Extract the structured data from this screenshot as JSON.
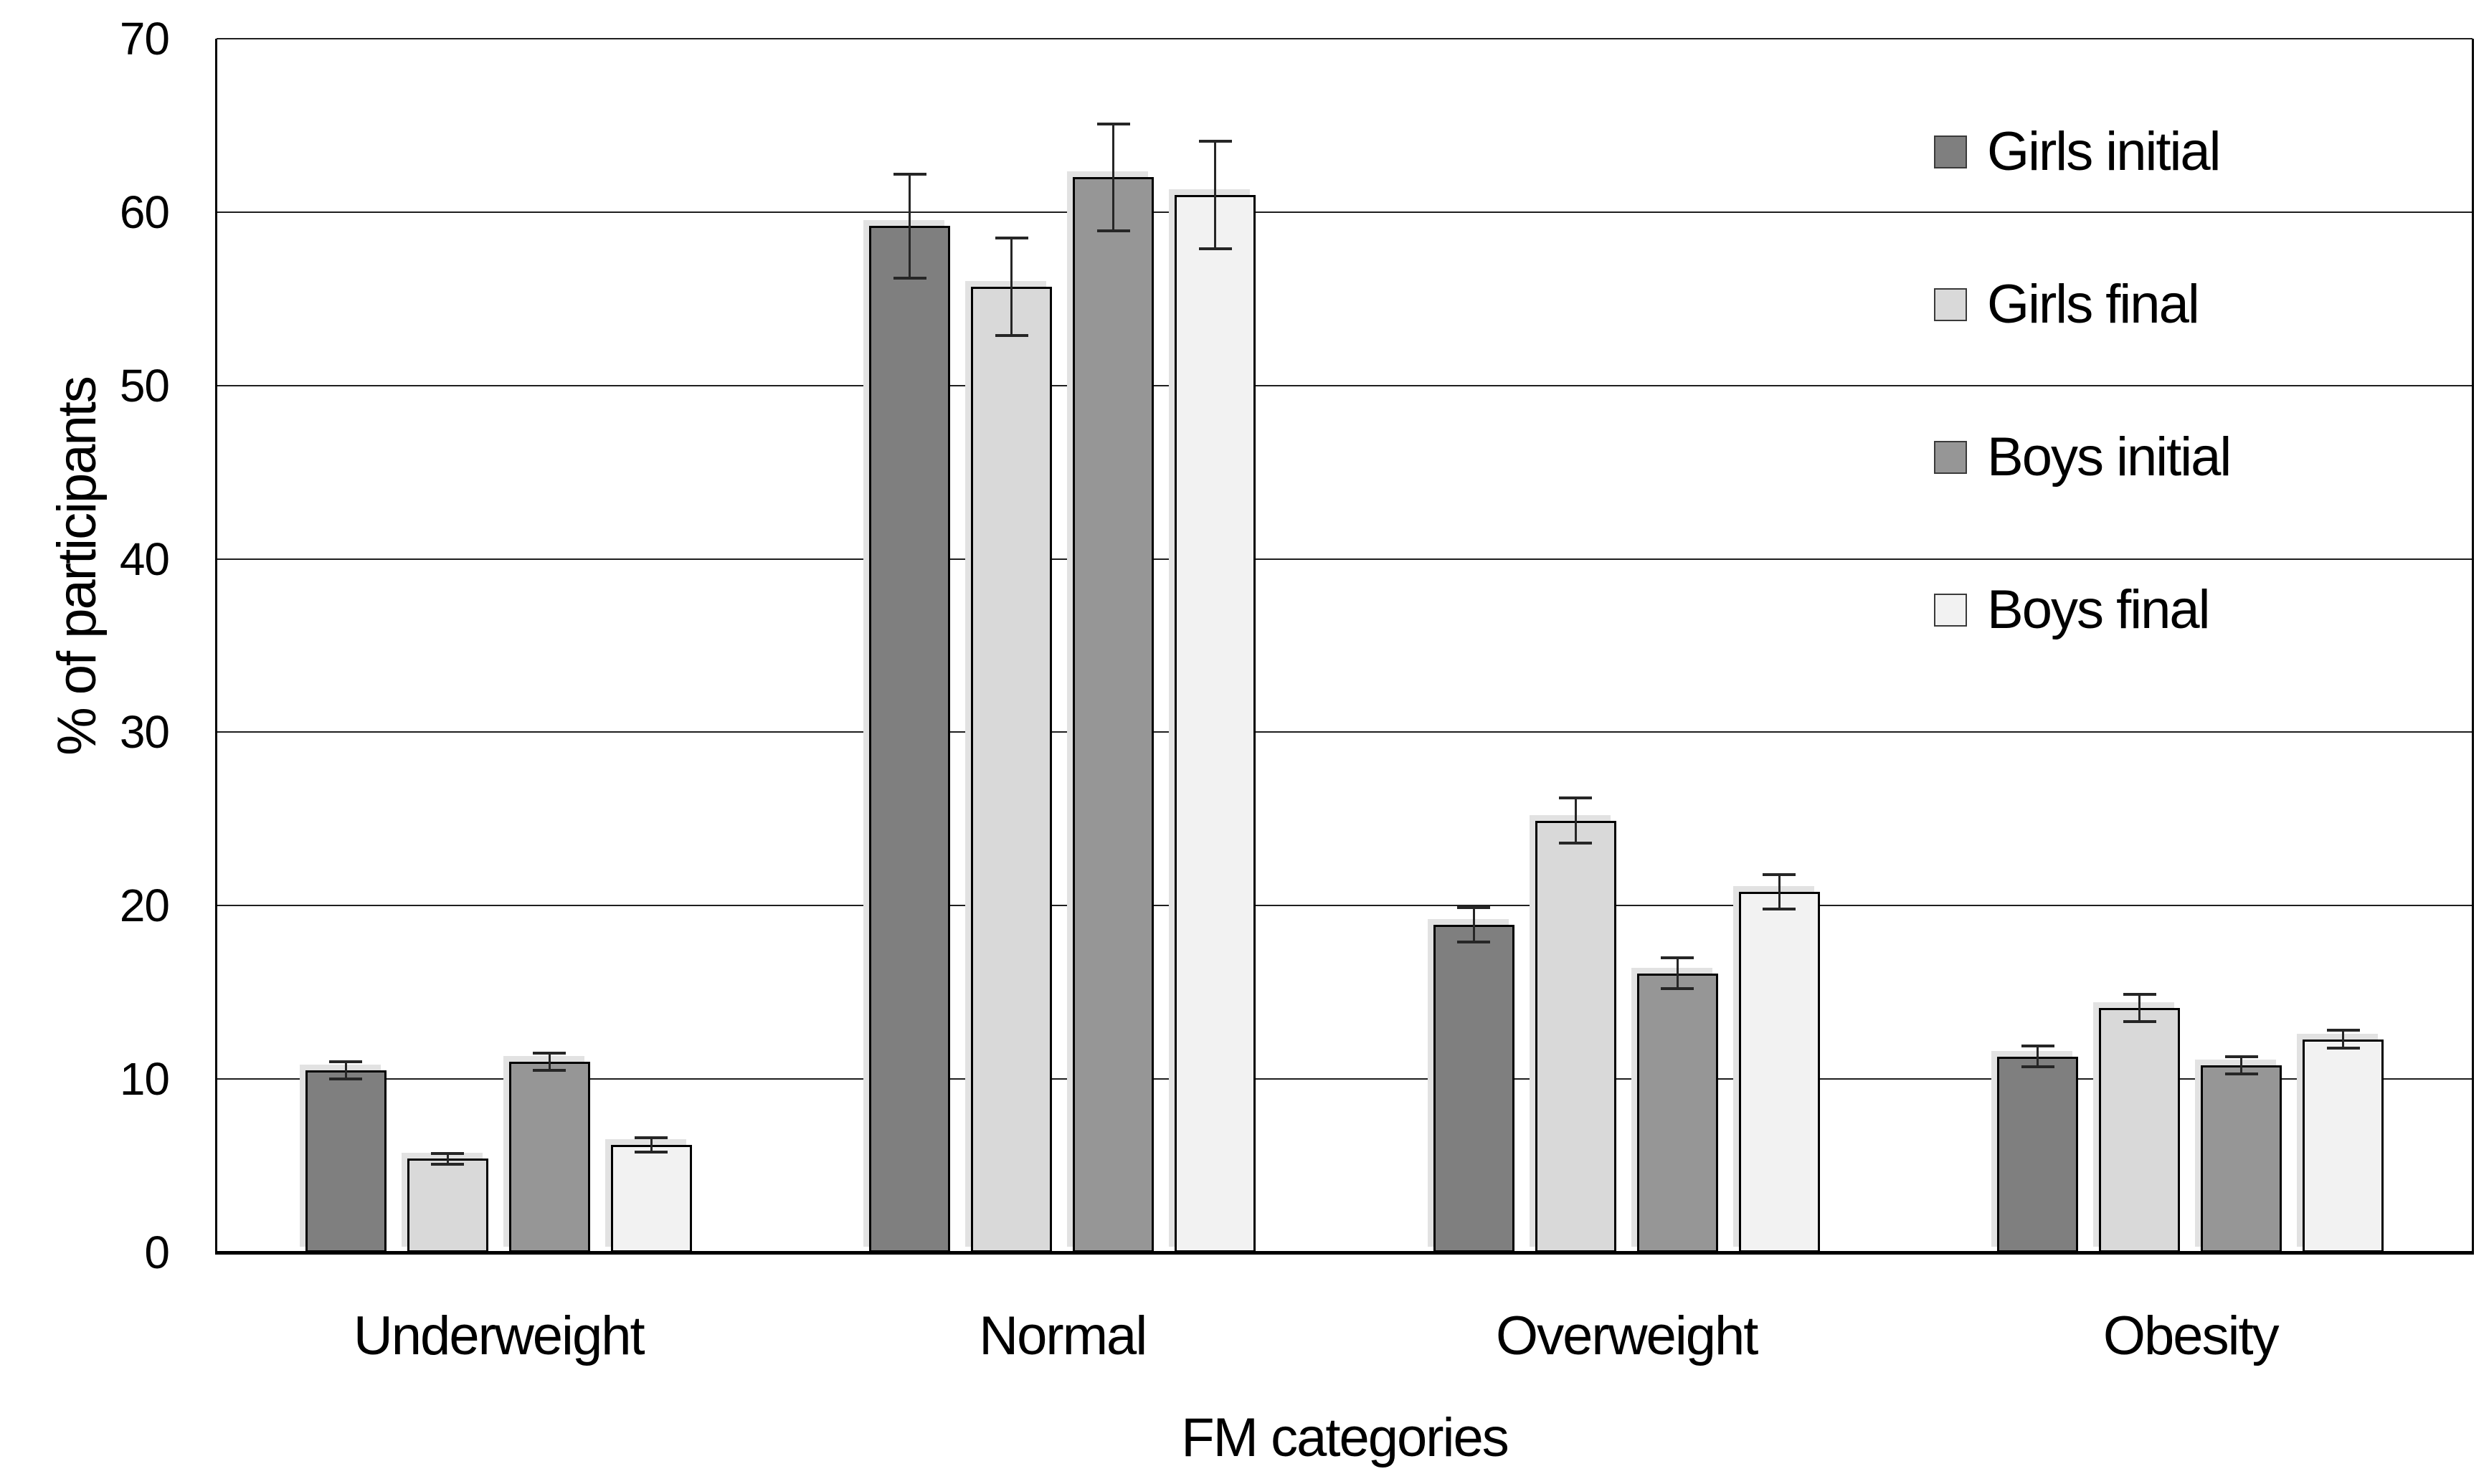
{
  "figure": {
    "background": "#ffffff",
    "text_color": "#000000",
    "gridline_color": "#1f1f1f",
    "axis_color": "#000000",
    "error_bar_color": "#262626"
  },
  "chart_data": {
    "type": "bar",
    "title": "",
    "xlabel": "FM categories",
    "ylabel": "% of participants",
    "categories": [
      "Underweight",
      "Normal",
      "Overweight",
      "Obesity"
    ],
    "series": [
      {
        "name": "Girls initial",
        "color": "#7f7f7f",
        "values": [
          10.5,
          59.2,
          18.9,
          11.3
        ],
        "errors": [
          0.5,
          3.0,
          1.0,
          0.6
        ]
      },
      {
        "name": "Girls final",
        "color": "#d9d9d9",
        "values": [
          5.4,
          55.7,
          24.9,
          14.1
        ],
        "errors": [
          0.3,
          2.8,
          1.3,
          0.8
        ]
      },
      {
        "name": "Boys initial",
        "color": "#969696",
        "values": [
          11.0,
          62.0,
          16.1,
          10.8
        ],
        "errors": [
          0.5,
          3.1,
          0.9,
          0.5
        ]
      },
      {
        "name": "Boys final",
        "color": "#f2f2f2",
        "values": [
          6.2,
          61.0,
          20.8,
          12.3
        ],
        "errors": [
          0.4,
          3.1,
          1.0,
          0.5
        ]
      }
    ],
    "ylim": [
      0,
      70
    ],
    "yticks": [
      0,
      10,
      20,
      30,
      40,
      50,
      60,
      70
    ],
    "grid": true,
    "legend_position": "top-right",
    "bar_outline_color": "#000000",
    "bar_shadow_color": "#e2e2e2"
  }
}
